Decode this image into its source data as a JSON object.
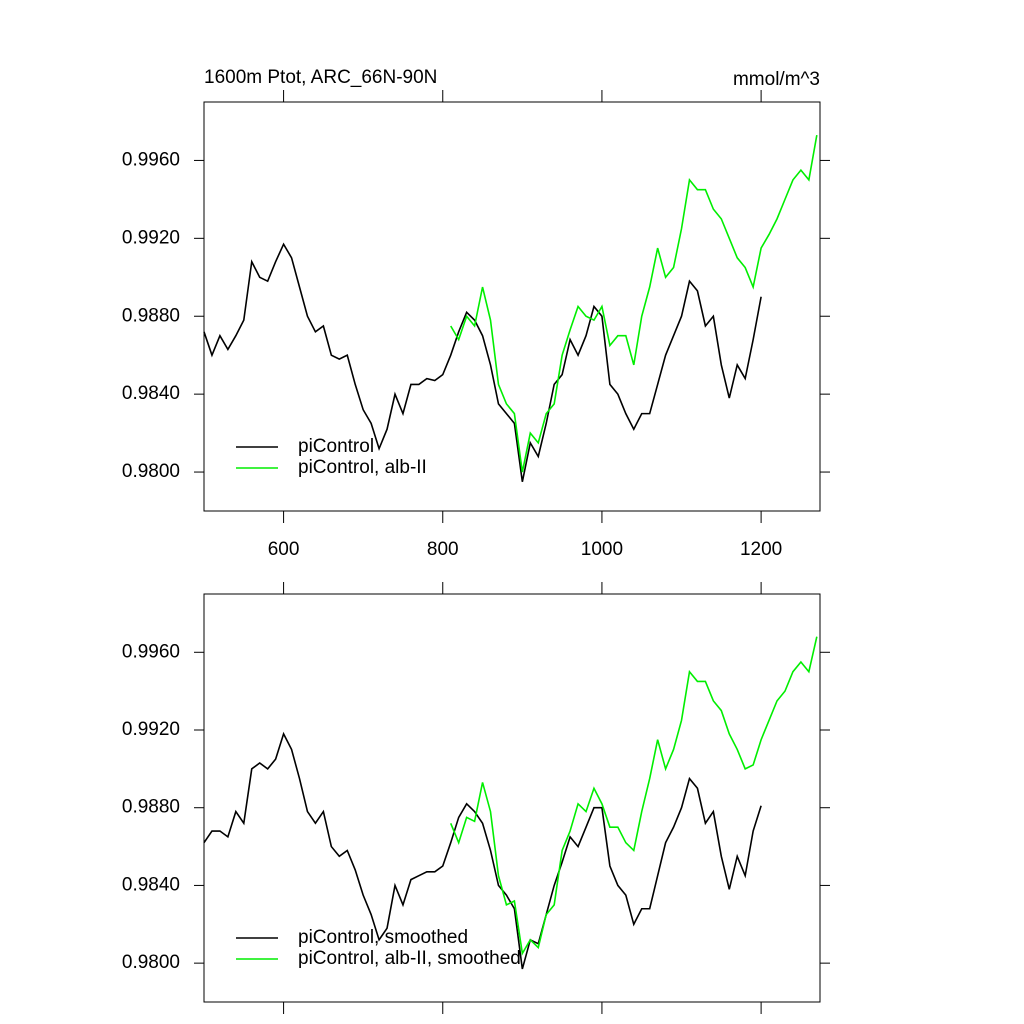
{
  "chart_data": [
    {
      "type": "line",
      "title": "1600m Ptot, ARC_66N-90N",
      "units": "mmol/m^3",
      "x": [
        500,
        510,
        520,
        530,
        540,
        550,
        560,
        570,
        580,
        590,
        600,
        610,
        620,
        630,
        640,
        650,
        660,
        670,
        680,
        690,
        700,
        710,
        720,
        730,
        740,
        750,
        760,
        770,
        780,
        790,
        800,
        810,
        820,
        830,
        840,
        850,
        860,
        870,
        880,
        890,
        900,
        910,
        920,
        930,
        940,
        950,
        960,
        970,
        980,
        990,
        1000,
        1010,
        1020,
        1030,
        1040,
        1050,
        1060,
        1070,
        1080,
        1090,
        1100,
        1110,
        1120,
        1130,
        1140,
        1150,
        1160,
        1170,
        1180,
        1190,
        1200,
        1210,
        1220,
        1230,
        1240,
        1250,
        1260,
        1270
      ],
      "series": [
        {
          "name": "piControl",
          "color": "#000000",
          "values": [
            0.9872,
            0.986,
            0.987,
            0.9863,
            0.987,
            0.9878,
            0.9908,
            0.99,
            0.9898,
            0.9908,
            0.9917,
            0.991,
            0.9895,
            0.988,
            0.9872,
            0.9875,
            0.986,
            0.9858,
            0.986,
            0.9845,
            0.9832,
            0.9825,
            0.9812,
            0.9822,
            0.984,
            0.983,
            0.9845,
            0.9845,
            0.9848,
            0.9847,
            0.985,
            0.986,
            0.9872,
            0.9882,
            0.9878,
            0.987,
            0.9855,
            0.9835,
            0.983,
            0.9825,
            0.9795,
            0.9815,
            0.9808,
            0.9825,
            0.9845,
            0.985,
            0.9868,
            0.986,
            0.987,
            0.9885,
            0.988,
            0.9845,
            0.984,
            0.983,
            0.9822,
            0.983,
            0.983,
            0.9845,
            0.986,
            0.987,
            0.988,
            0.9898,
            0.9893,
            0.9875,
            0.988,
            0.9855,
            0.9838,
            0.9855,
            0.9848,
            0.9868,
            0.989,
            null,
            null,
            null,
            null,
            null,
            null,
            null
          ]
        },
        {
          "name": "piControl, alb-II",
          "color": "#00ee00",
          "values": [
            null,
            null,
            null,
            null,
            null,
            null,
            null,
            null,
            null,
            null,
            null,
            null,
            null,
            null,
            null,
            null,
            null,
            null,
            null,
            null,
            null,
            null,
            null,
            null,
            null,
            null,
            null,
            null,
            null,
            null,
            null,
            0.9875,
            0.9868,
            0.988,
            0.9875,
            0.9895,
            0.9878,
            0.9845,
            0.9835,
            0.983,
            0.98,
            0.982,
            0.9815,
            0.983,
            0.9835,
            0.986,
            0.9873,
            0.9885,
            0.988,
            0.9878,
            0.9885,
            0.9865,
            0.987,
            0.987,
            0.9855,
            0.988,
            0.9895,
            0.9915,
            0.99,
            0.9905,
            0.9925,
            0.995,
            0.9945,
            0.9945,
            0.9935,
            0.993,
            0.992,
            0.991,
            0.9905,
            0.9895,
            0.9915,
            0.9922,
            0.993,
            0.994,
            0.995,
            0.9955,
            0.995,
            0.9973
          ]
        }
      ],
      "xlim": [
        500,
        1274
      ],
      "ylim": [
        0.978,
        0.999
      ],
      "xticks": [
        600,
        800,
        1000,
        1200
      ],
      "xtick_labels": true,
      "yticks": [
        {
          "value": 0.98,
          "label": "0.9800"
        },
        {
          "value": 0.984,
          "label": "0.9840"
        },
        {
          "value": 0.988,
          "label": "0.9880"
        },
        {
          "value": 0.992,
          "label": "0.9920"
        },
        {
          "value": 0.996,
          "label": "0.9960"
        }
      ],
      "legend": "lower left"
    },
    {
      "type": "line",
      "x": [
        500,
        510,
        520,
        530,
        540,
        550,
        560,
        570,
        580,
        590,
        600,
        610,
        620,
        630,
        640,
        650,
        660,
        670,
        680,
        690,
        700,
        710,
        720,
        730,
        740,
        750,
        760,
        770,
        780,
        790,
        800,
        810,
        820,
        830,
        840,
        850,
        860,
        870,
        880,
        890,
        900,
        910,
        920,
        930,
        940,
        950,
        960,
        970,
        980,
        990,
        1000,
        1010,
        1020,
        1030,
        1040,
        1050,
        1060,
        1070,
        1080,
        1090,
        1100,
        1110,
        1120,
        1130,
        1140,
        1150,
        1160,
        1170,
        1180,
        1190,
        1200,
        1210,
        1220,
        1230,
        1240,
        1250,
        1260,
        1270
      ],
      "series": [
        {
          "name": "piControl, smoothed",
          "color": "#000000",
          "values": [
            0.9862,
            0.9868,
            0.9868,
            0.9865,
            0.9878,
            0.9872,
            0.99,
            0.9903,
            0.99,
            0.9905,
            0.9918,
            0.991,
            0.9895,
            0.9878,
            0.9872,
            0.9878,
            0.986,
            0.9855,
            0.9858,
            0.9848,
            0.9835,
            0.9825,
            0.9812,
            0.9818,
            0.984,
            0.983,
            0.9843,
            0.9845,
            0.9847,
            0.9847,
            0.985,
            0.9862,
            0.9875,
            0.9882,
            0.9878,
            0.9872,
            0.9858,
            0.984,
            0.9835,
            0.9828,
            0.9797,
            0.9812,
            0.981,
            0.9825,
            0.984,
            0.9852,
            0.9865,
            0.986,
            0.987,
            0.988,
            0.988,
            0.985,
            0.984,
            0.9835,
            0.982,
            0.9828,
            0.9828,
            0.9845,
            0.9862,
            0.987,
            0.988,
            0.9895,
            0.989,
            0.9872,
            0.9878,
            0.9855,
            0.9838,
            0.9855,
            0.9845,
            0.9868,
            0.9881,
            null,
            null,
            null,
            null,
            null,
            null,
            null
          ]
        },
        {
          "name": "piControl, alb-II, smoothed",
          "color": "#00ee00",
          "values": [
            null,
            null,
            null,
            null,
            null,
            null,
            null,
            null,
            null,
            null,
            null,
            null,
            null,
            null,
            null,
            null,
            null,
            null,
            null,
            null,
            null,
            null,
            null,
            null,
            null,
            null,
            null,
            null,
            null,
            null,
            null,
            0.9872,
            0.9862,
            0.9875,
            0.9873,
            0.9893,
            0.9878,
            0.9845,
            0.983,
            0.9832,
            0.9805,
            0.9812,
            0.9808,
            0.9825,
            0.983,
            0.9858,
            0.9868,
            0.9882,
            0.9878,
            0.989,
            0.9882,
            0.987,
            0.987,
            0.9862,
            0.9858,
            0.9878,
            0.9895,
            0.9915,
            0.99,
            0.991,
            0.9925,
            0.995,
            0.9945,
            0.9945,
            0.9935,
            0.993,
            0.9918,
            0.991,
            0.99,
            0.9902,
            0.9915,
            0.9925,
            0.9935,
            0.994,
            0.995,
            0.9955,
            0.995,
            0.9968
          ]
        }
      ],
      "xlim": [
        500,
        1274
      ],
      "ylim": [
        0.978,
        0.999
      ],
      "xticks": [
        600,
        800,
        1000,
        1200
      ],
      "xtick_labels": false,
      "yticks": [
        {
          "value": 0.98,
          "label": "0.9800"
        },
        {
          "value": 0.984,
          "label": "0.9840"
        },
        {
          "value": 0.988,
          "label": "0.9880"
        },
        {
          "value": 0.992,
          "label": "0.9920"
        },
        {
          "value": 0.996,
          "label": "0.9960"
        }
      ],
      "legend": "lower left"
    }
  ]
}
